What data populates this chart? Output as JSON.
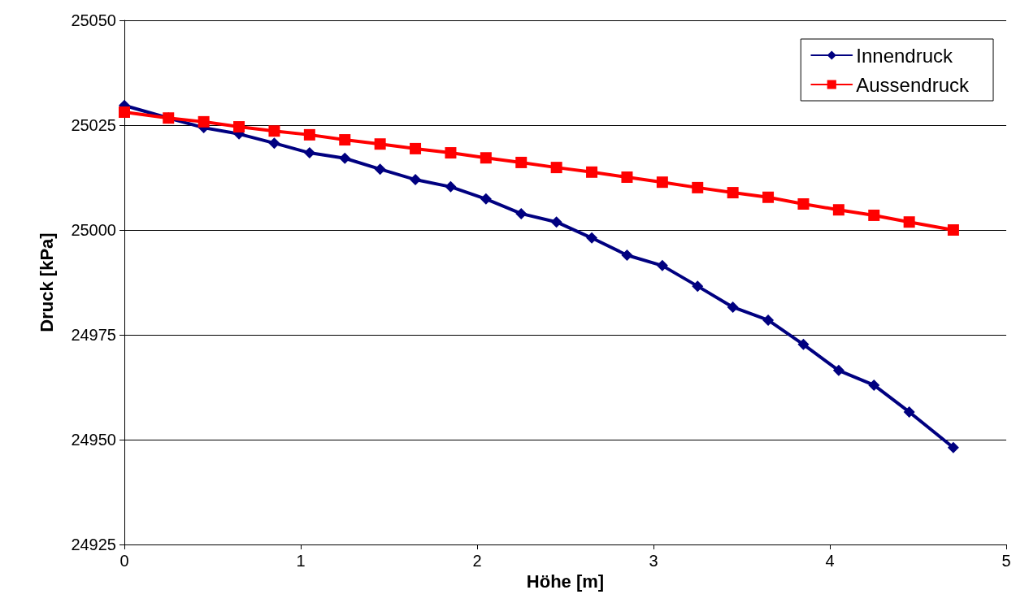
{
  "chart_data": {
    "type": "line",
    "xlabel": "Höhe [m]",
    "ylabel": "Druck [kPa]",
    "xlim": [
      0,
      5
    ],
    "xticks": [
      0,
      1,
      2,
      3,
      4,
      5
    ],
    "ylim": [
      24925,
      25050
    ],
    "yticks": [
      24925,
      24950,
      24975,
      25000,
      25025,
      25050
    ],
    "grid": "y",
    "legend": "top right",
    "line_style": "solid",
    "series": [
      {
        "name": "Innendruck",
        "color": "#000080",
        "marker": "diamond",
        "x": [
          0,
          0.25,
          0.45,
          0.65,
          0.85,
          1.05,
          1.25,
          1.45,
          1.65,
          1.85,
          2.05,
          2.25,
          2.45,
          2.65,
          2.85,
          3.05,
          3.25,
          3.45,
          3.65,
          3.85,
          4.05,
          4.25,
          4.45,
          4.7
        ],
        "values": [
          25029.7,
          25026.7,
          25024.4,
          25022.9,
          25020.7,
          25018.4,
          25017.1,
          25014.5,
          25012.0,
          25010.3,
          25007.4,
          25003.9,
          25001.9,
          24998.1,
          24994.0,
          24991.5,
          24986.6,
          24981.6,
          24978.5,
          24972.7,
          24966.5,
          24963.0,
          24956.6,
          24948.1
        ]
      },
      {
        "name": "Aussendruck",
        "color": "#ff0000",
        "marker": "square",
        "x": [
          0,
          0.25,
          0.45,
          0.65,
          0.85,
          1.05,
          1.25,
          1.45,
          1.65,
          1.85,
          2.05,
          2.25,
          2.45,
          2.65,
          2.85,
          3.05,
          3.25,
          3.45,
          3.65,
          3.85,
          4.05,
          4.25,
          4.45,
          4.7
        ],
        "values": [
          25028.1,
          25026.7,
          25025.8,
          25024.6,
          25023.6,
          25022.7,
          25021.5,
          25020.5,
          25019.4,
          25018.4,
          25017.2,
          25016.1,
          25014.9,
          25013.8,
          25012.6,
          25011.4,
          25010.1,
          25008.9,
          25007.8,
          25006.2,
          25004.8,
          25003.5,
          25001.9,
          25000.0
        ]
      }
    ]
  }
}
